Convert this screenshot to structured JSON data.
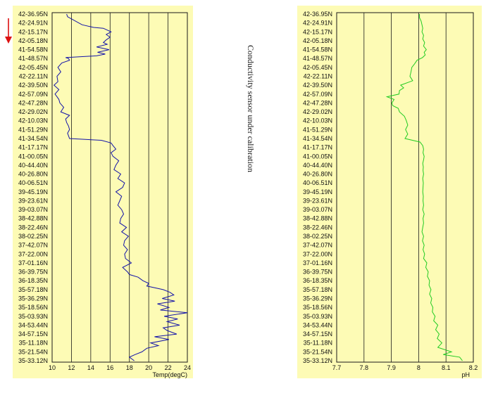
{
  "depth_labels": [
    "42-36.95N",
    "42-24.91N",
    "42-15.17N",
    "42-05.18N",
    "41-54.58N",
    "41-48.57N",
    "42-05.45N",
    "42-22.11N",
    "42-39.50N",
    "42-57.09N",
    "42-47.28N",
    "42-29.02N",
    "42-10.03N",
    "41-51.29N",
    "41-34.54N",
    "41-17.17N",
    "41-00.05N",
    "40-44.40N",
    "40-26.80N",
    "40-06.51N",
    "39-45.19N",
    "39-23.61N",
    "39-03.07N",
    "38-42.88N",
    "38-22.46N",
    "38-02.25N",
    "37-42.07N",
    "37-22.00N",
    "37-01.16N",
    "36-39.75N",
    "36-18.35N",
    "35-57.18N",
    "35-36.29N",
    "35-18.56N",
    "35-03.93N",
    "34-53.44N",
    "34-57.15N",
    "35-11.18N",
    "35-21.54N",
    "35-33.12N"
  ],
  "annotation": "Conductivity sensor under calibration",
  "colors": {
    "panel": "#fdfbb5",
    "temp_line": "#1414a8",
    "ph_line": "#22cc22",
    "grid": "#1a1a1a",
    "arrow": "#dd1111"
  },
  "arrow_icon": "down-arrow-icon",
  "chart_data": [
    {
      "type": "line",
      "orientation": "vertical",
      "xlabel": "Temp(degC)",
      "xlim": [
        10,
        24
      ],
      "xticks": [
        10,
        12,
        14,
        16,
        18,
        20,
        22,
        24
      ],
      "series": [
        {
          "depth_index": [
            0,
            0.3,
            1.2,
            1.5,
            1.6,
            2.0,
            2.3,
            2.6,
            2.9,
            3.2,
            3.4,
            3.7,
            4.0,
            4.3,
            4.5,
            4.7,
            4.9,
            5.0,
            5.2,
            5.5,
            6.0,
            6.5,
            7.0,
            7.6,
            8.0,
            8.5,
            9.0,
            9.3,
            9.6,
            10.0,
            10.5,
            11.0,
            11.4,
            11.8,
            12.2,
            12.6,
            13.0,
            13.4,
            13.7,
            14.0,
            14.2,
            14.5,
            14.8,
            15.2,
            15.6,
            16.0,
            16.5,
            17.0,
            17.5,
            18.0,
            18.5,
            19.0,
            19.5,
            20.0,
            20.5,
            21.0,
            21.5,
            22.0,
            22.5,
            23.0,
            23.5,
            24.0,
            24.5,
            25.0,
            25.5,
            26.0,
            26.5,
            27.0,
            27.5,
            28.0,
            28.5,
            29.0,
            29.3,
            29.6,
            30.0,
            30.3,
            30.6,
            31.0,
            31.3,
            31.6,
            32.0,
            32.3,
            32.6,
            33.0,
            33.3,
            33.6,
            34.0,
            34.3,
            34.6,
            35.0,
            35.3,
            35.6,
            36.0,
            36.3,
            36.6,
            37.0,
            37.3,
            37.6,
            38.0,
            38.3,
            38.6,
            39.0
          ],
          "values": [
            11.5,
            11.6,
            13.1,
            14.3,
            15.3,
            16.1,
            15.6,
            16.0,
            15.6,
            15.3,
            15.7,
            14.6,
            15.9,
            14.7,
            15.5,
            14.6,
            11.4,
            11.7,
            11.8,
            11.0,
            10.6,
            10.9,
            10.5,
            10.6,
            10.2,
            10.7,
            10.3,
            10.5,
            10.7,
            10.8,
            11.2,
            10.9,
            11.8,
            11.4,
            11.5,
            11.7,
            11.8,
            11.6,
            11.7,
            11.8,
            15.1,
            16.1,
            16.3,
            16.6,
            16.1,
            16.3,
            16.9,
            16.6,
            16.4,
            17.1,
            16.8,
            17.5,
            17.3,
            16.6,
            17.2,
            17.0,
            16.8,
            17.2,
            17.4,
            17.1,
            17.0,
            17.7,
            17.2,
            17.9,
            17.5,
            17.4,
            17.8,
            17.5,
            17.6,
            18.2,
            17.3,
            17.8,
            18.0,
            18.9,
            19.4,
            20.0,
            19.8,
            21.5,
            22.2,
            22.6,
            21.4,
            22.7,
            20.9,
            22.1,
            21.2,
            24.0,
            21.6,
            23.0,
            21.9,
            23.2,
            21.5,
            21.9,
            22.9,
            20.6,
            22.1,
            20.2,
            21.0,
            19.8,
            19.3,
            18.6,
            18.0,
            18.5
          ]
        }
      ]
    },
    {
      "type": "line",
      "orientation": "vertical",
      "xlabel": "pH",
      "xlim": [
        7.7,
        8.2
      ],
      "xticks": [
        7.7,
        7.8,
        7.9,
        8,
        8.1,
        8.2
      ],
      "series": [
        {
          "depth_index": [
            0,
            0.4,
            0.8,
            1.2,
            1.6,
            2.0,
            2.4,
            2.8,
            3.2,
            3.6,
            4.0,
            4.3,
            4.6,
            4.9,
            5.2,
            5.6,
            6.0,
            6.5,
            7.0,
            7.5,
            8.0,
            8.3,
            8.6,
            9.0,
            9.3,
            9.6,
            10.0,
            10.3,
            10.6,
            11.0,
            11.5,
            12.0,
            12.5,
            13.0,
            13.5,
            14.0,
            14.4,
            14.8,
            15.2,
            15.6,
            16.0,
            16.4,
            16.8,
            17.2,
            17.6,
            18.0,
            18.5,
            19.0,
            19.5,
            20.0,
            20.5,
            21.0,
            21.5,
            22.0,
            22.5,
            23.0,
            23.5,
            24.0,
            24.5,
            25.0,
            25.5,
            26.0,
            26.5,
            27.0,
            27.5,
            28.0,
            28.5,
            29.0,
            29.5,
            30.0,
            30.5,
            31.0,
            31.5,
            32.0,
            32.5,
            33.0,
            33.5,
            34.0,
            34.5,
            35.0,
            35.5,
            36.0,
            36.5,
            37.0,
            37.5,
            38.0,
            38.3,
            38.6,
            39.0
          ],
          "values": [
            8.003,
            8.003,
            8.009,
            8.012,
            8.015,
            8.012,
            8.018,
            8.015,
            8.022,
            8.018,
            8.028,
            8.02,
            8.024,
            8.014,
            7.994,
            7.985,
            7.975,
            7.972,
            7.968,
            7.978,
            7.934,
            7.945,
            7.93,
            7.928,
            7.884,
            7.91,
            7.902,
            7.905,
            7.925,
            7.93,
            7.948,
            7.955,
            7.96,
            7.952,
            7.96,
            7.95,
            8.005,
            8.015,
            8.018,
            8.016,
            8.02,
            8.018,
            8.015,
            8.017,
            8.016,
            8.018,
            8.015,
            8.017,
            8.016,
            8.015,
            8.017,
            8.016,
            8.018,
            8.015,
            8.02,
            8.016,
            8.018,
            8.015,
            8.012,
            8.018,
            8.014,
            8.02,
            8.016,
            8.022,
            8.018,
            8.03,
            8.026,
            8.035,
            8.032,
            8.04,
            8.038,
            8.045,
            8.04,
            8.048,
            8.044,
            8.052,
            8.05,
            8.06,
            8.055,
            8.07,
            8.062,
            8.075,
            8.068,
            8.085,
            8.07,
            8.12,
            8.09,
            8.15,
            8.16
          ]
        }
      ]
    }
  ]
}
